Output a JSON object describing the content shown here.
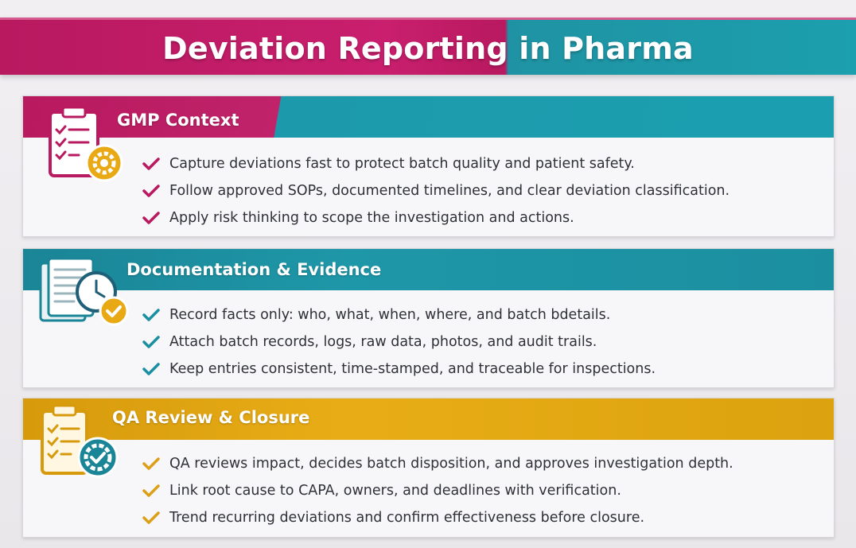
{
  "title": {
    "text": "Deviation Reporting in Pharma",
    "colors": {
      "magenta": "#c91f6e",
      "teal": "#1c9fae"
    }
  },
  "sections": [
    {
      "title": "GMP Context",
      "icon": "clipboard-gear-icon",
      "accent": "#c0236a",
      "bullets": [
        "Capture deviations fast to protect batch quality and patient safety.",
        "Follow approved SOPs, documented timelines, and clear deviation classification.",
        "Apply risk thinking to scope the investigation and actions."
      ]
    },
    {
      "title": "Documentation & Evidence",
      "icon": "documents-clock-check-icon",
      "accent": "#1e97a8",
      "bullets": [
        "Record facts only: who, what, when, where, and batch bdetails.",
        "Attach batch records, logs, raw data, photos, and audit trails.",
        "Keep entries consistent, time-stamped, and traceable for inspections."
      ]
    },
    {
      "title": "QA Review & Closure",
      "icon": "clipboard-gear-check-icon",
      "accent": "#e0a312",
      "bullets": [
        "QA reviews impact, decides batch disposition, and approves investigation depth.",
        "Link root cause to CAPA, owners, and deadlines with verification.",
        "Trend recurring deviations and confirm effectiveness before closure."
      ]
    }
  ]
}
